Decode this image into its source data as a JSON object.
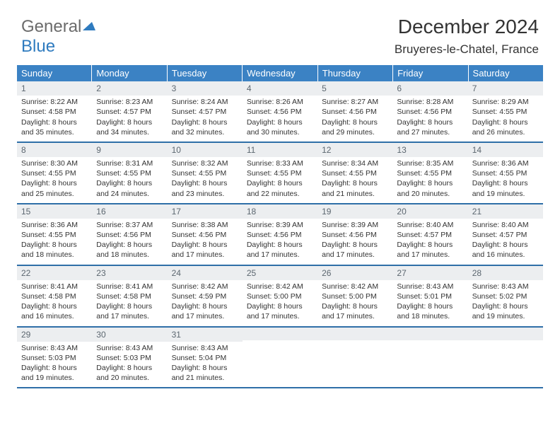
{
  "brand": {
    "part1": "General",
    "part2": "Blue"
  },
  "title": "December 2024",
  "location": "Bruyeres-le-Chatel, France",
  "colors": {
    "header_bg": "#3b82c4",
    "header_text": "#ffffff",
    "daynum_bg": "#eceef0",
    "daynum_text": "#5c6770",
    "week_border": "#2f6fa8",
    "body_text": "#333333",
    "logo_gray": "#6b6b6b",
    "logo_blue": "#2f7bbf"
  },
  "day_headers": [
    "Sunday",
    "Monday",
    "Tuesday",
    "Wednesday",
    "Thursday",
    "Friday",
    "Saturday"
  ],
  "weeks": [
    [
      {
        "n": "1",
        "sr": "8:22 AM",
        "ss": "4:58 PM",
        "dl": "8 hours and 35 minutes."
      },
      {
        "n": "2",
        "sr": "8:23 AM",
        "ss": "4:57 PM",
        "dl": "8 hours and 34 minutes."
      },
      {
        "n": "3",
        "sr": "8:24 AM",
        "ss": "4:57 PM",
        "dl": "8 hours and 32 minutes."
      },
      {
        "n": "4",
        "sr": "8:26 AM",
        "ss": "4:56 PM",
        "dl": "8 hours and 30 minutes."
      },
      {
        "n": "5",
        "sr": "8:27 AM",
        "ss": "4:56 PM",
        "dl": "8 hours and 29 minutes."
      },
      {
        "n": "6",
        "sr": "8:28 AM",
        "ss": "4:56 PM",
        "dl": "8 hours and 27 minutes."
      },
      {
        "n": "7",
        "sr": "8:29 AM",
        "ss": "4:55 PM",
        "dl": "8 hours and 26 minutes."
      }
    ],
    [
      {
        "n": "8",
        "sr": "8:30 AM",
        "ss": "4:55 PM",
        "dl": "8 hours and 25 minutes."
      },
      {
        "n": "9",
        "sr": "8:31 AM",
        "ss": "4:55 PM",
        "dl": "8 hours and 24 minutes."
      },
      {
        "n": "10",
        "sr": "8:32 AM",
        "ss": "4:55 PM",
        "dl": "8 hours and 23 minutes."
      },
      {
        "n": "11",
        "sr": "8:33 AM",
        "ss": "4:55 PM",
        "dl": "8 hours and 22 minutes."
      },
      {
        "n": "12",
        "sr": "8:34 AM",
        "ss": "4:55 PM",
        "dl": "8 hours and 21 minutes."
      },
      {
        "n": "13",
        "sr": "8:35 AM",
        "ss": "4:55 PM",
        "dl": "8 hours and 20 minutes."
      },
      {
        "n": "14",
        "sr": "8:36 AM",
        "ss": "4:55 PM",
        "dl": "8 hours and 19 minutes."
      }
    ],
    [
      {
        "n": "15",
        "sr": "8:36 AM",
        "ss": "4:55 PM",
        "dl": "8 hours and 18 minutes."
      },
      {
        "n": "16",
        "sr": "8:37 AM",
        "ss": "4:56 PM",
        "dl": "8 hours and 18 minutes."
      },
      {
        "n": "17",
        "sr": "8:38 AM",
        "ss": "4:56 PM",
        "dl": "8 hours and 17 minutes."
      },
      {
        "n": "18",
        "sr": "8:39 AM",
        "ss": "4:56 PM",
        "dl": "8 hours and 17 minutes."
      },
      {
        "n": "19",
        "sr": "8:39 AM",
        "ss": "4:56 PM",
        "dl": "8 hours and 17 minutes."
      },
      {
        "n": "20",
        "sr": "8:40 AM",
        "ss": "4:57 PM",
        "dl": "8 hours and 17 minutes."
      },
      {
        "n": "21",
        "sr": "8:40 AM",
        "ss": "4:57 PM",
        "dl": "8 hours and 16 minutes."
      }
    ],
    [
      {
        "n": "22",
        "sr": "8:41 AM",
        "ss": "4:58 PM",
        "dl": "8 hours and 16 minutes."
      },
      {
        "n": "23",
        "sr": "8:41 AM",
        "ss": "4:58 PM",
        "dl": "8 hours and 17 minutes."
      },
      {
        "n": "24",
        "sr": "8:42 AM",
        "ss": "4:59 PM",
        "dl": "8 hours and 17 minutes."
      },
      {
        "n": "25",
        "sr": "8:42 AM",
        "ss": "5:00 PM",
        "dl": "8 hours and 17 minutes."
      },
      {
        "n": "26",
        "sr": "8:42 AM",
        "ss": "5:00 PM",
        "dl": "8 hours and 17 minutes."
      },
      {
        "n": "27",
        "sr": "8:43 AM",
        "ss": "5:01 PM",
        "dl": "8 hours and 18 minutes."
      },
      {
        "n": "28",
        "sr": "8:43 AM",
        "ss": "5:02 PM",
        "dl": "8 hours and 19 minutes."
      }
    ],
    [
      {
        "n": "29",
        "sr": "8:43 AM",
        "ss": "5:03 PM",
        "dl": "8 hours and 19 minutes."
      },
      {
        "n": "30",
        "sr": "8:43 AM",
        "ss": "5:03 PM",
        "dl": "8 hours and 20 minutes."
      },
      {
        "n": "31",
        "sr": "8:43 AM",
        "ss": "5:04 PM",
        "dl": "8 hours and 21 minutes."
      },
      null,
      null,
      null,
      null
    ]
  ],
  "labels": {
    "sunrise": "Sunrise:",
    "sunset": "Sunset:",
    "daylight": "Daylight:"
  }
}
